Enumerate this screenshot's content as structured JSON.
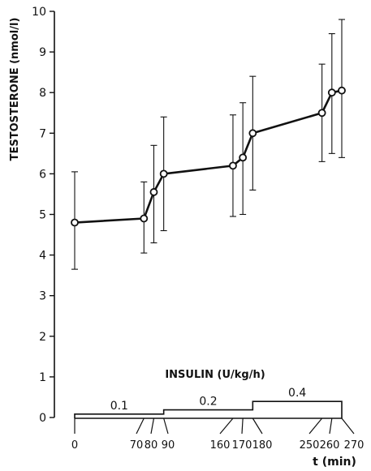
{
  "chart_data": {
    "type": "line",
    "ylabel": "TESTOSTERONE (nmol/l)",
    "xlabel": "t (min)",
    "ylim": [
      0,
      10
    ],
    "yticks": [
      0,
      1,
      2,
      3,
      4,
      5,
      6,
      7,
      8,
      9,
      10
    ],
    "xticks": [
      0,
      70,
      80,
      90,
      160,
      170,
      180,
      250,
      260,
      270
    ],
    "x_tick_labels": [
      "0",
      "70",
      "80",
      "90",
      "160",
      "170",
      "180",
      "250",
      "260",
      "270"
    ],
    "series": [
      {
        "x": [
          0,
          70,
          80,
          90,
          160,
          170,
          180,
          250,
          260,
          270
        ],
        "y": [
          4.8,
          4.9,
          5.55,
          6.0,
          6.2,
          6.4,
          7.0,
          7.5,
          8.0,
          8.05
        ],
        "err_low": [
          3.65,
          4.05,
          4.3,
          4.6,
          4.95,
          5.0,
          5.6,
          6.3,
          6.5,
          6.4
        ],
        "err_high": [
          6.05,
          5.8,
          6.7,
          7.4,
          7.45,
          7.75,
          8.4,
          8.7,
          9.45,
          9.8
        ]
      }
    ],
    "insulin": {
      "title": "INSULIN (U/kg/h)",
      "steps": [
        {
          "start": 0,
          "end": 90,
          "label": "0.1",
          "level": 0.1
        },
        {
          "start": 90,
          "end": 180,
          "label": "0.2",
          "level": 0.2
        },
        {
          "start": 180,
          "end": 270,
          "label": "0.4",
          "level": 0.4
        }
      ]
    },
    "grid": false,
    "colors": {
      "line": "#111111",
      "background": "#ffffff"
    }
  }
}
